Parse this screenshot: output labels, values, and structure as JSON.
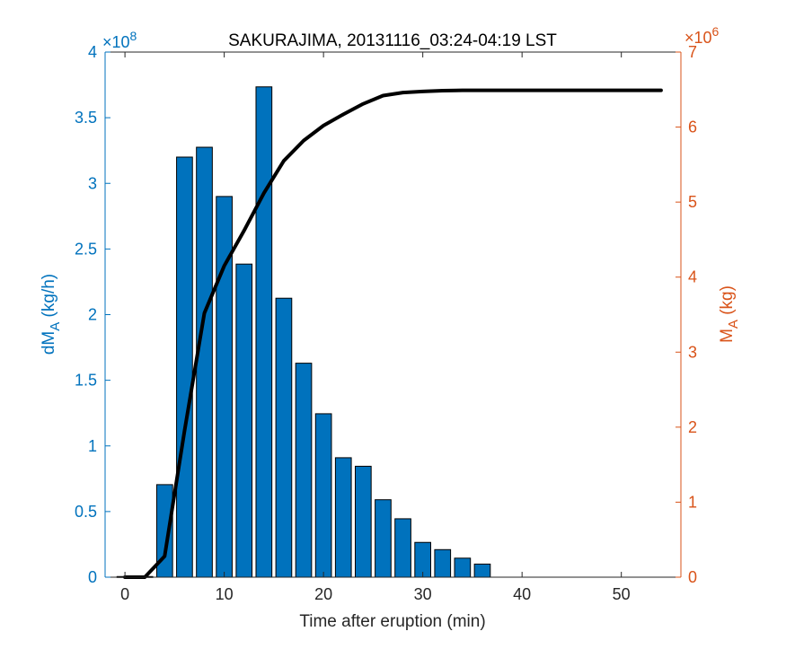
{
  "chart_data": {
    "type": "bar",
    "title": "SAKURAJIMA, 20131116_03:24-04:19 LST",
    "xlabel": "Time after eruption (min)",
    "ylabel_left": {
      "main": "dM",
      "sub": "A",
      "unit": " (kg/h)"
    },
    "ylabel_right": {
      "main": "M",
      "sub": "A",
      "unit": " (kg)"
    },
    "left_multiplier": {
      "base": "×10",
      "exp": "8"
    },
    "right_multiplier": {
      "base": "×10",
      "exp": "6"
    },
    "xlim": [
      -2,
      56
    ],
    "ylim_left": [
      0,
      4
    ],
    "ylim_right": [
      0,
      7
    ],
    "x_ticks": [
      0,
      10,
      20,
      30,
      40,
      50
    ],
    "y_ticks_left": [
      "0",
      "0.5",
      "1",
      "1.5",
      "2",
      "2.5",
      "3",
      "3.5",
      "4"
    ],
    "y_ticks_right": [
      "0",
      "1",
      "2",
      "3",
      "4",
      "5",
      "6",
      "7"
    ],
    "bar_width": 1.6,
    "bars": {
      "name": "dM_A",
      "x": [
        0,
        2,
        4,
        6,
        8,
        10,
        12,
        14,
        16,
        18,
        20,
        22,
        24,
        26,
        28,
        30,
        32,
        34,
        36
      ],
      "values": [
        0.005,
        0.005,
        0.705,
        3.2,
        3.275,
        2.9,
        2.385,
        3.735,
        2.125,
        1.63,
        1.245,
        0.91,
        0.845,
        0.59,
        0.445,
        0.265,
        0.21,
        0.145,
        0.1
      ]
    },
    "line": {
      "name": "M_A",
      "x": [
        0,
        2,
        4,
        6,
        8,
        10,
        12,
        14,
        16,
        18,
        20,
        22,
        24,
        26,
        28,
        30,
        32,
        34,
        36,
        38,
        40,
        42,
        44,
        46,
        48,
        50,
        52,
        54
      ],
      "values": [
        0,
        0,
        0.28,
        1.95,
        3.52,
        4.15,
        4.62,
        5.12,
        5.55,
        5.82,
        6.02,
        6.17,
        6.31,
        6.42,
        6.46,
        6.475,
        6.485,
        6.49,
        6.49,
        6.49,
        6.49,
        6.49,
        6.49,
        6.49,
        6.49,
        6.49,
        6.49,
        6.49
      ]
    },
    "colors": {
      "bars": "#0072BD",
      "left_axis": "#0072BD",
      "right_axis": "#D95319",
      "line": "#000000"
    },
    "grid": false
  }
}
